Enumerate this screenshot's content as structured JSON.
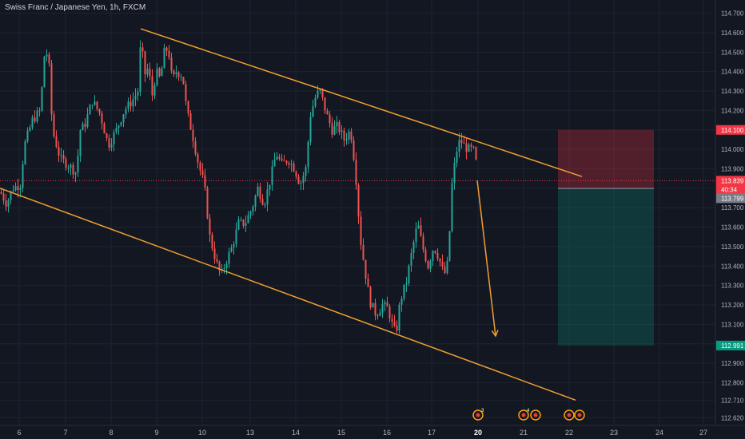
{
  "header": {
    "symbol_title": "Swiss Franc / Japanese Yen, 1h, FXCM"
  },
  "chart_data": {
    "type": "candlestick",
    "symbol": "Swiss Franc / Japanese Yen",
    "interval": "1h",
    "source": "FXCM",
    "ylim": [
      112.58,
      114.76
    ],
    "y_ticks": [
      112.62,
      112.71,
      112.8,
      112.9,
      113.0,
      113.1,
      113.2,
      113.3,
      113.4,
      113.5,
      113.6,
      113.7,
      113.8,
      113.9,
      114.0,
      114.1,
      114.2,
      114.3,
      114.4,
      114.5,
      114.6,
      114.7
    ],
    "y_tick_labels": [
      "112.620",
      "112.710",
      "112.800",
      "112.900",
      "113.000",
      "113.100",
      "113.200",
      "113.300",
      "113.400",
      "113.500",
      "113.600",
      "113.700",
      "113.800",
      "113.900",
      "114.000",
      "114.100",
      "114.200",
      "114.300",
      "114.400",
      "114.500",
      "114.600",
      "114.700"
    ],
    "x_ticks": [
      "6",
      "7",
      "8",
      "9",
      "10",
      "13",
      "14",
      "15",
      "16",
      "17",
      "20",
      "21",
      "22",
      "23",
      "24",
      "27"
    ],
    "x_ticks_bold": [
      "20"
    ],
    "price_path": [
      [
        0,
        113.78
      ],
      [
        8,
        113.72
      ],
      [
        15,
        113.8
      ],
      [
        25,
        113.82
      ],
      [
        30,
        114.02
      ],
      [
        40,
        114.15
      ],
      [
        50,
        114.2
      ],
      [
        55,
        114.48
      ],
      [
        60,
        114.5
      ],
      [
        65,
        114.1
      ],
      [
        75,
        113.95
      ],
      [
        85,
        113.92
      ],
      [
        95,
        113.88
      ],
      [
        100,
        114.1
      ],
      [
        105,
        114.12
      ],
      [
        115,
        114.25
      ],
      [
        125,
        114.18
      ],
      [
        135,
        114.02
      ],
      [
        145,
        114.1
      ],
      [
        155,
        114.2
      ],
      [
        165,
        114.25
      ],
      [
        172,
        114.3
      ],
      [
        176,
        114.58
      ],
      [
        180,
        114.38
      ],
      [
        185,
        114.42
      ],
      [
        190,
        114.28
      ],
      [
        195,
        114.4
      ],
      [
        200,
        114.36
      ],
      [
        205,
        114.5
      ],
      [
        210,
        114.52
      ],
      [
        215,
        114.35
      ],
      [
        220,
        114.4
      ],
      [
        228,
        114.38
      ],
      [
        233,
        114.2
      ],
      [
        240,
        114.08
      ],
      [
        248,
        113.92
      ],
      [
        255,
        113.82
      ],
      [
        262,
        113.55
      ],
      [
        270,
        113.42
      ],
      [
        276,
        113.35
      ],
      [
        282,
        113.42
      ],
      [
        290,
        113.5
      ],
      [
        298,
        113.62
      ],
      [
        306,
        113.62
      ],
      [
        315,
        113.7
      ],
      [
        322,
        113.8
      ],
      [
        330,
        113.72
      ],
      [
        338,
        113.85
      ],
      [
        345,
        113.98
      ],
      [
        352,
        113.92
      ],
      [
        360,
        113.95
      ],
      [
        368,
        113.9
      ],
      [
        375,
        113.82
      ],
      [
        382,
        113.9
      ],
      [
        388,
        114.18
      ],
      [
        395,
        114.28
      ],
      [
        400,
        114.3
      ],
      [
        408,
        114.18
      ],
      [
        415,
        114.1
      ],
      [
        422,
        114.12
      ],
      [
        430,
        114.05
      ],
      [
        438,
        114.1
      ],
      [
        444,
        113.9
      ],
      [
        450,
        113.55
      ],
      [
        456,
        113.38
      ],
      [
        462,
        113.22
      ],
      [
        470,
        113.15
      ],
      [
        478,
        113.2
      ],
      [
        485,
        113.18
      ],
      [
        490,
        113.1
      ],
      [
        495,
        113.05
      ],
      [
        500,
        113.22
      ],
      [
        508,
        113.32
      ],
      [
        515,
        113.48
      ],
      [
        522,
        113.62
      ],
      [
        528,
        113.5
      ],
      [
        535,
        113.4
      ],
      [
        542,
        113.5
      ],
      [
        548,
        113.45
      ],
      [
        555,
        113.35
      ],
      [
        560,
        113.42
      ],
      [
        565,
        113.82
      ],
      [
        570,
        113.98
      ],
      [
        575,
        114.05
      ],
      [
        580,
        114.02
      ],
      [
        585,
        114.0
      ],
      [
        590,
        114.0
      ],
      [
        594,
        113.98
      ],
      [
        597,
        113.84
      ]
    ],
    "trendlines": [
      {
        "name": "channel-top",
        "from": [
          176,
          114.62
        ],
        "to": [
          728,
          113.86
        ]
      },
      {
        "name": "channel-bottom",
        "from": [
          0,
          113.8
        ],
        "to": [
          720,
          112.71
        ]
      }
    ],
    "projection_arrow": {
      "from": [
        597,
        113.84
      ],
      "to": [
        620,
        113.04
      ]
    },
    "position": {
      "x_from": 698,
      "x_to": 818,
      "stop": 114.1,
      "entry": 113.799,
      "target": 112.991
    },
    "price_labels": [
      {
        "text": "114.100",
        "value": 114.1,
        "color": "#f23645",
        "name": "stop-price-label"
      },
      {
        "text": "113.839",
        "value": 113.839,
        "color": "#f23645",
        "name": "current-price-label"
      },
      {
        "text": "40:34",
        "value": 113.82,
        "color": "#f23645",
        "name": "countdown-label"
      },
      {
        "text": "113.799",
        "value": 113.799,
        "color": "#787b86",
        "name": "entry-price-label"
      },
      {
        "text": "112.991",
        "value": 112.991,
        "color": "#089981",
        "name": "target-price-label"
      }
    ],
    "current_price": 113.839,
    "grid": true,
    "colors": {
      "background": "#131722",
      "up": "#26a69a",
      "down": "#ef5350",
      "trendline": "#f0a030",
      "stop_zone": "#f23645",
      "target_zone": "#089981"
    },
    "event_markers": [
      {
        "x_day": "20",
        "count": "3"
      },
      {
        "x_day": "21",
        "count": "4"
      },
      {
        "x_day": "22",
        "count": ""
      }
    ]
  }
}
